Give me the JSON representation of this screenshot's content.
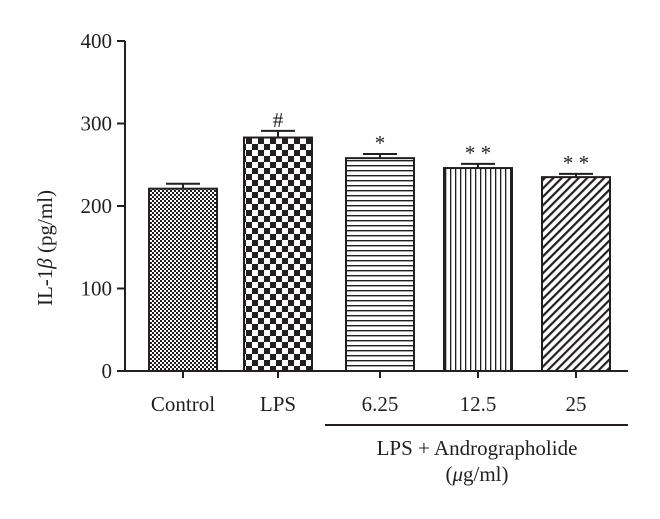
{
  "chart_data": {
    "type": "bar",
    "categories": [
      "Control",
      "LPS",
      "6.25",
      "12.5",
      "25"
    ],
    "values": [
      221,
      283,
      258,
      246,
      235
    ],
    "errors": [
      6,
      8,
      5,
      5,
      4
    ],
    "significance": [
      "",
      "#",
      "*",
      "* *",
      "* *"
    ],
    "patterns": [
      "fine-checker",
      "checker",
      "horizontal-lines",
      "vertical-lines",
      "diagonal-lines"
    ],
    "ylabel_prefix": "IL-1",
    "ylabel_beta": "β",
    "ylabel_unit": " (pg/ml)",
    "ylim": [
      0,
      400
    ],
    "yticks": [
      "0",
      "100",
      "200",
      "300",
      "400"
    ],
    "group_label_line1": "LPS + Andrographolide",
    "group_label_line2_mu": "μ",
    "group_label_line2_rest": "g/ml)",
    "group_label_line2_open": "(",
    "grid": false,
    "legend": "none",
    "colors": {
      "ink": "#231f20",
      "background": "#ffffff"
    }
  }
}
